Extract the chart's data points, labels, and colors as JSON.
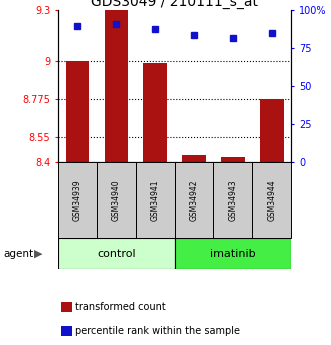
{
  "title": "GDS3049 / 210111_s_at",
  "samples": [
    "GSM34939",
    "GSM34940",
    "GSM34941",
    "GSM34942",
    "GSM34943",
    "GSM34944"
  ],
  "red_values": [
    9.0,
    9.3,
    8.99,
    8.44,
    8.43,
    8.775
  ],
  "blue_values_pct": [
    90,
    91,
    88,
    84,
    82,
    85
  ],
  "ylim_left": [
    8.4,
    9.3
  ],
  "ylim_right": [
    0,
    100
  ],
  "yticks_left": [
    8.4,
    8.55,
    8.775,
    9.0,
    9.3
  ],
  "yticks_right": [
    0,
    25,
    50,
    75,
    100
  ],
  "ytick_labels_left": [
    "8.4",
    "8.55",
    "8.775",
    "9",
    "9.3"
  ],
  "ytick_labels_right": [
    "0",
    "25",
    "50",
    "75",
    "100%"
  ],
  "hlines": [
    9.0,
    8.775,
    8.55
  ],
  "bar_color": "#aa1111",
  "dot_color": "#1111cc",
  "control_bg": "#ccffcc",
  "imatinib_bg": "#44ee44",
  "sample_bg": "#cccccc",
  "bar_bottom": 8.4,
  "legend_red": "transformed count",
  "legend_blue": "percentile rank within the sample"
}
